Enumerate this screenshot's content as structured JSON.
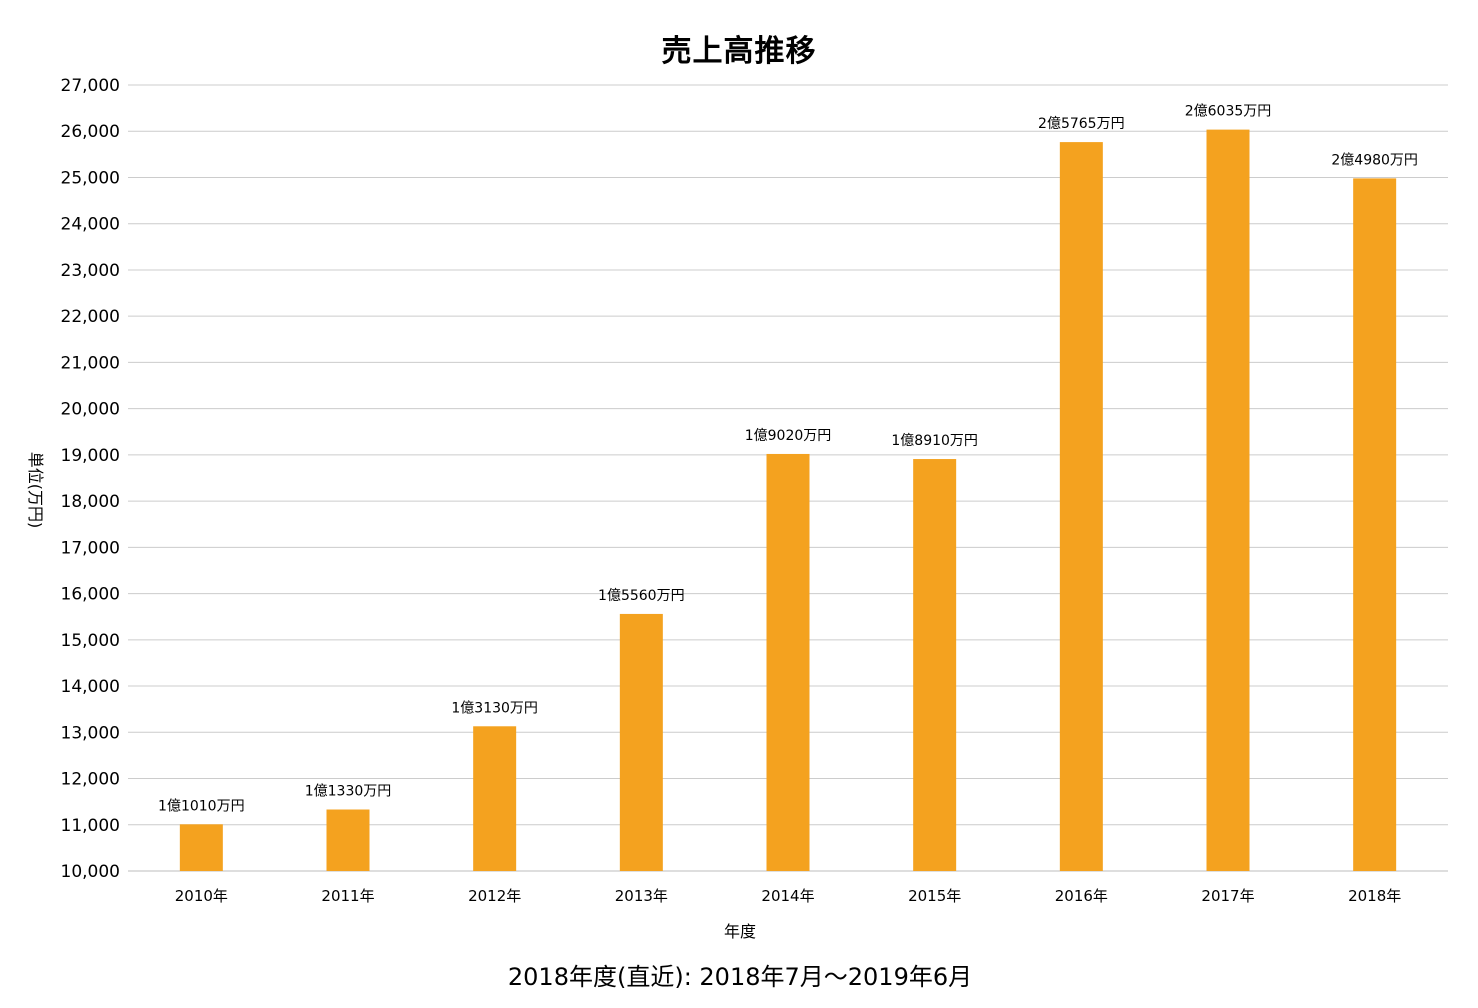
{
  "chart_data": {
    "type": "bar",
    "title": "売上高推移",
    "xlabel": "年度",
    "ylabel": "単位(万円)",
    "ylim": [
      10000,
      27000
    ],
    "yticks": [
      "10,000",
      "11,000",
      "12,000",
      "13,000",
      "14,000",
      "15,000",
      "16,000",
      "17,000",
      "18,000",
      "19,000",
      "20,000",
      "21,000",
      "22,000",
      "23,000",
      "24,000",
      "25,000",
      "26,000",
      "27,000"
    ],
    "ytick_values": [
      10000,
      11000,
      12000,
      13000,
      14000,
      15000,
      16000,
      17000,
      18000,
      19000,
      20000,
      21000,
      22000,
      23000,
      24000,
      25000,
      26000,
      27000
    ],
    "categories": [
      "2010年",
      "2011年",
      "2012年",
      "2013年",
      "2014年",
      "2015年",
      "2016年",
      "2017年",
      "2018年"
    ],
    "values": [
      11010,
      11330,
      13130,
      15560,
      19020,
      18910,
      25765,
      26035,
      24980
    ],
    "data_labels": [
      "1億1010万円",
      "1億1330万円",
      "1億3130万円",
      "1億5560万円",
      "1億9020万円",
      "1億8910万円",
      "2億5765万円",
      "2億6035万円",
      "2億4980万円"
    ],
    "bar_color": "#F4A21F",
    "grid": true,
    "footnote": "2018年度(直近): 2018年7月〜2019年6月"
  }
}
